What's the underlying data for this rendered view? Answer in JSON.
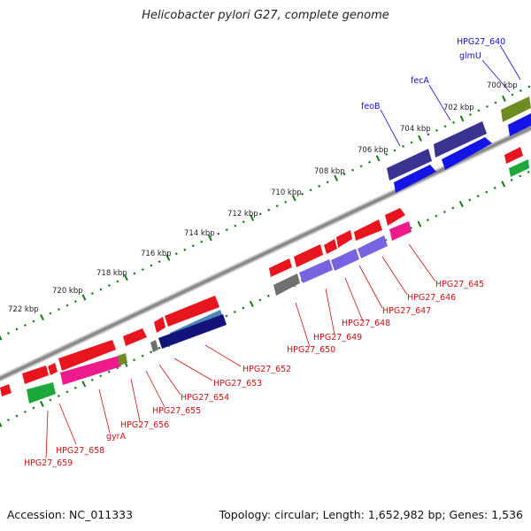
{
  "title": "Helicobacter pylori G27, complete genome",
  "footer": {
    "accession": "Accession: NC_011333",
    "summary": "Topology: circular; Length: 1,652,982 bp; Genes: 1,536"
  },
  "ticks": [
    "700 kbp",
    "702 kbp",
    "704 kbp",
    "706 kbp",
    "708 kbp",
    "710 kbp",
    "712 kbp",
    "714 kbp",
    "716 kbp",
    "718 kbp",
    "720 kbp",
    "722 kbp"
  ],
  "top_labels": [
    "HPG27_640",
    "glmU",
    "fecA",
    "feoB"
  ],
  "bottom_labels": [
    "HPG27_645",
    "HPG27_646",
    "HPG27_647",
    "HPG27_648",
    "HPG27_649",
    "HPG27_650",
    "HPG27_652",
    "HPG27_653",
    "HPG27_654",
    "HPG27_655",
    "HPG27_656",
    "gyrA",
    "HPG27_658",
    "HPG27_659"
  ],
  "colors": {
    "red": "#e8141e",
    "magenta": "#ee1b8c",
    "blue": "#1414e6",
    "navy": "#3a3392",
    "violet": "#7a63e0",
    "green": "#1ea83a",
    "olive": "#6e8c22",
    "gray": "#707070",
    "steel": "#4d86b8",
    "label_top": "#1111cc",
    "label_bottom": "#cc1111",
    "tick": "#157a15"
  }
}
